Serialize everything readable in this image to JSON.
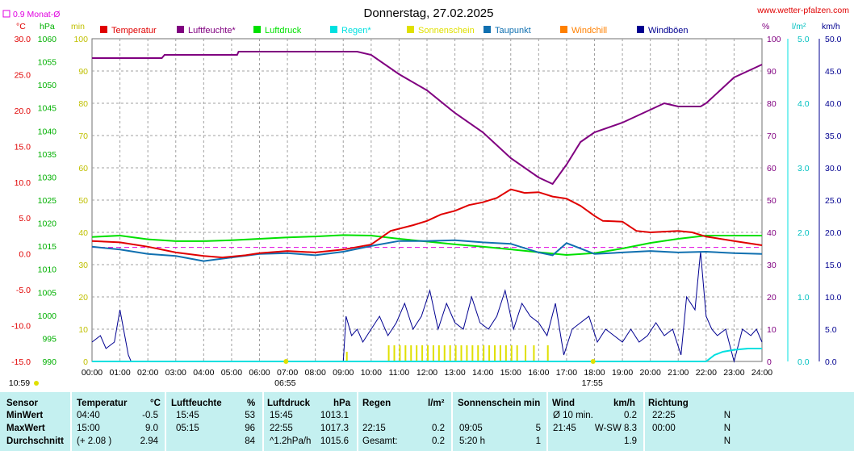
{
  "title": "Donnerstag, 27.02.2025",
  "site": "www.wetter-pfalzen.com",
  "avg_legend_label": "0.9 Monat-Ø",
  "unit_labels": {
    "temp": "°C",
    "press": "hPa",
    "sun": "min",
    "hum": "%",
    "rain": "l/m²",
    "wind": "km/h"
  },
  "legend": [
    {
      "label": "Temperatur",
      "color": "#e00000"
    },
    {
      "label": "Luftfeuchte*",
      "color": "#800080"
    },
    {
      "label": "Luftdruck",
      "color": "#00e000"
    },
    {
      "label": "Regen*",
      "color": "#00e0e0"
    },
    {
      "label": "Sonnenschein",
      "color": "#e0e000"
    },
    {
      "label": "Taupunkt",
      "color": "#1070b0"
    },
    {
      "label": "Windchill",
      "color": "#ff8000"
    },
    {
      "label": "Windböen",
      "color": "#000090"
    }
  ],
  "colors": {
    "temp": "#e00000",
    "hum": "#800080",
    "press": "#00e000",
    "rain": "#00e0e0",
    "sun": "#e0e000",
    "dew": "#1070b0",
    "gust": "#000090",
    "avg": "#e000e0",
    "grid": "#a0a0a0"
  },
  "axes": {
    "temp": {
      "ticks": [
        "30.0",
        "25.0",
        "20.0",
        "15.0",
        "10.0",
        "5.0",
        "0.0",
        "-5.0",
        "-10.0",
        "-15.0"
      ],
      "range": [
        -15,
        30
      ]
    },
    "press": {
      "ticks": [
        "1060",
        "1055",
        "1050",
        "1045",
        "1040",
        "1035",
        "1030",
        "1025",
        "1020",
        "1015",
        "1010",
        "1005",
        "1000",
        "995",
        "990"
      ],
      "range": [
        990,
        1060
      ]
    },
    "sun": {
      "ticks": [
        "100",
        "90",
        "80",
        "70",
        "60",
        "50",
        "40",
        "30",
        "20",
        "10",
        "0"
      ],
      "range": [
        0,
        100
      ]
    },
    "hum": {
      "ticks": [
        "100",
        "90",
        "80",
        "70",
        "60",
        "50",
        "40",
        "30",
        "20",
        "10",
        "0"
      ],
      "range": [
        0,
        100
      ]
    },
    "rain": {
      "ticks": [
        "5.0",
        "4.0",
        "3.0",
        "2.0",
        "1.0",
        "0.0"
      ],
      "range": [
        0,
        5
      ]
    },
    "wind": {
      "ticks": [
        "50.0",
        "45.0",
        "40.0",
        "35.0",
        "30.0",
        "25.0",
        "20.0",
        "15.0",
        "10.0",
        "5.0",
        "0.0"
      ],
      "range": [
        0,
        50
      ]
    },
    "x": {
      "ticks": [
        "00:00",
        "01:00",
        "02:00",
        "03:00",
        "04:00",
        "05:00",
        "06:00",
        "07:00",
        "08:00",
        "09:00",
        "10:00",
        "11:00",
        "12:00",
        "13:00",
        "14:00",
        "15:00",
        "16:00",
        "17:00",
        "18:00",
        "19:00",
        "20:00",
        "21:00",
        "22:00",
        "23:00",
        "24:00"
      ],
      "range": [
        0,
        24
      ]
    }
  },
  "sun_events": [
    {
      "label": "10:59",
      "hour": -1
    },
    {
      "label": "06:55",
      "hour": 6.92
    },
    {
      "label": "17:55",
      "hour": 17.92
    }
  ],
  "chart_data": {
    "type": "line",
    "x_unit": "hour of day",
    "month_avg_temp": 0.9,
    "series": [
      {
        "name": "Temperatur",
        "axis": "temp",
        "points": [
          [
            0,
            1.8
          ],
          [
            1,
            1.6
          ],
          [
            2,
            1.0
          ],
          [
            3,
            0.2
          ],
          [
            4,
            -0.3
          ],
          [
            4.67,
            -0.5
          ],
          [
            5.5,
            -0.2
          ],
          [
            6,
            0.1
          ],
          [
            7,
            0.4
          ],
          [
            8,
            0.2
          ],
          [
            9,
            0.6
          ],
          [
            10,
            1.3
          ],
          [
            10.7,
            3.2
          ],
          [
            11.5,
            4.0
          ],
          [
            12,
            4.6
          ],
          [
            12.5,
            5.5
          ],
          [
            13,
            6.0
          ],
          [
            13.5,
            6.8
          ],
          [
            14,
            7.2
          ],
          [
            14.5,
            7.8
          ],
          [
            15,
            9.0
          ],
          [
            15.5,
            8.5
          ],
          [
            16,
            8.6
          ],
          [
            16.5,
            8.0
          ],
          [
            17,
            7.7
          ],
          [
            17.5,
            6.7
          ],
          [
            18,
            5.3
          ],
          [
            18.3,
            4.6
          ],
          [
            19,
            4.5
          ],
          [
            19.5,
            3.2
          ],
          [
            20,
            3.0
          ],
          [
            21,
            3.2
          ],
          [
            21.5,
            3.0
          ],
          [
            22,
            2.4
          ],
          [
            23,
            1.8
          ],
          [
            24,
            1.2
          ]
        ]
      },
      {
        "name": "Luftfeuchte*",
        "axis": "hum",
        "points": [
          [
            0,
            94
          ],
          [
            2.5,
            94
          ],
          [
            2.6,
            95
          ],
          [
            5.2,
            95
          ],
          [
            5.25,
            96
          ],
          [
            9.5,
            96
          ],
          [
            10,
            95
          ],
          [
            11,
            89
          ],
          [
            12,
            84
          ],
          [
            13,
            77
          ],
          [
            14,
            71
          ],
          [
            15,
            63
          ],
          [
            16,
            57
          ],
          [
            16.5,
            55
          ],
          [
            17,
            61
          ],
          [
            17.5,
            68
          ],
          [
            18,
            71
          ],
          [
            19,
            74
          ],
          [
            20,
            78
          ],
          [
            20.5,
            80
          ],
          [
            21,
            79
          ],
          [
            21.8,
            79
          ],
          [
            22,
            80
          ],
          [
            23,
            88
          ],
          [
            23.5,
            90
          ],
          [
            24,
            92
          ]
        ]
      },
      {
        "name": "Luftdruck",
        "axis": "press",
        "points": [
          [
            0,
            1017.0
          ],
          [
            1,
            1017.3
          ],
          [
            2,
            1016.5
          ],
          [
            3,
            1016.1
          ],
          [
            4,
            1016.1
          ],
          [
            5,
            1016.3
          ],
          [
            6,
            1016.6
          ],
          [
            7,
            1016.9
          ],
          [
            8,
            1017.1
          ],
          [
            9,
            1017.4
          ],
          [
            10,
            1017.3
          ],
          [
            11,
            1016.6
          ],
          [
            12,
            1016.0
          ],
          [
            13,
            1015.4
          ],
          [
            14,
            1014.9
          ],
          [
            15,
            1014.3
          ],
          [
            16,
            1013.7
          ],
          [
            17,
            1013.1
          ],
          [
            18,
            1013.5
          ],
          [
            19,
            1014.5
          ],
          [
            20,
            1015.7
          ],
          [
            21,
            1016.6
          ],
          [
            22,
            1017.3
          ],
          [
            23,
            1017.3
          ],
          [
            24,
            1017.3
          ]
        ]
      },
      {
        "name": "Taupunkt",
        "axis": "temp",
        "points": [
          [
            0,
            1.0
          ],
          [
            1,
            0.6
          ],
          [
            2,
            0.0
          ],
          [
            3,
            -0.3
          ],
          [
            4,
            -1.0
          ],
          [
            5,
            -0.5
          ],
          [
            6,
            0.0
          ],
          [
            7,
            0.1
          ],
          [
            8,
            -0.2
          ],
          [
            9,
            0.3
          ],
          [
            10,
            1.1
          ],
          [
            11,
            1.8
          ],
          [
            12,
            1.8
          ],
          [
            13,
            1.9
          ],
          [
            14,
            1.6
          ],
          [
            15,
            1.4
          ],
          [
            16,
            0.2
          ],
          [
            16.5,
            -0.2
          ],
          [
            17,
            1.5
          ],
          [
            18,
            0.0
          ],
          [
            19,
            0.2
          ],
          [
            20,
            0.4
          ],
          [
            21,
            0.2
          ],
          [
            22,
            0.3
          ],
          [
            23,
            0.1
          ],
          [
            24,
            0.0
          ]
        ]
      },
      {
        "name": "Windböen",
        "axis": "wind",
        "points": [
          [
            0,
            3
          ],
          [
            0.3,
            4
          ],
          [
            0.5,
            2
          ],
          [
            0.8,
            3
          ],
          [
            1.0,
            8
          ],
          [
            1.3,
            1
          ],
          [
            1.4,
            0
          ],
          [
            9.0,
            0
          ],
          [
            9.1,
            7
          ],
          [
            9.3,
            4
          ],
          [
            9.5,
            5
          ],
          [
            9.7,
            3
          ],
          [
            10,
            5
          ],
          [
            10.3,
            7
          ],
          [
            10.6,
            4
          ],
          [
            10.9,
            6
          ],
          [
            11.2,
            9
          ],
          [
            11.5,
            5
          ],
          [
            11.8,
            7
          ],
          [
            12.1,
            11
          ],
          [
            12.4,
            5
          ],
          [
            12.7,
            9
          ],
          [
            13.0,
            6
          ],
          [
            13.3,
            5
          ],
          [
            13.6,
            10
          ],
          [
            13.9,
            6
          ],
          [
            14.2,
            5
          ],
          [
            14.5,
            7
          ],
          [
            14.8,
            11
          ],
          [
            15.1,
            5
          ],
          [
            15.4,
            9
          ],
          [
            15.7,
            7
          ],
          [
            16.0,
            6
          ],
          [
            16.3,
            4
          ],
          [
            16.6,
            9
          ],
          [
            16.9,
            1
          ],
          [
            17.2,
            5
          ],
          [
            17.5,
            6
          ],
          [
            17.8,
            7
          ],
          [
            18.1,
            3
          ],
          [
            18.4,
            5
          ],
          [
            18.7,
            4
          ],
          [
            19.0,
            3
          ],
          [
            19.3,
            5
          ],
          [
            19.6,
            3
          ],
          [
            19.9,
            4
          ],
          [
            20.2,
            6
          ],
          [
            20.5,
            4
          ],
          [
            20.8,
            5
          ],
          [
            21.1,
            1
          ],
          [
            21.3,
            10
          ],
          [
            21.6,
            8
          ],
          [
            21.8,
            17
          ],
          [
            22.0,
            7
          ],
          [
            22.2,
            5
          ],
          [
            22.4,
            4
          ],
          [
            22.7,
            5
          ],
          [
            23.0,
            0
          ],
          [
            23.3,
            5
          ],
          [
            23.6,
            4
          ],
          [
            23.8,
            5
          ],
          [
            24,
            3
          ]
        ]
      },
      {
        "name": "Regen*",
        "axis": "rain",
        "points": [
          [
            0,
            0
          ],
          [
            22.0,
            0
          ],
          [
            22.3,
            0.1
          ],
          [
            22.6,
            0.15
          ],
          [
            23,
            0.18
          ],
          [
            23.5,
            0.2
          ],
          [
            24,
            0.2
          ]
        ]
      }
    ],
    "sunshine": {
      "axis": "sun",
      "bars": [
        [
          9.1,
          3
        ],
        [
          10.6,
          5
        ],
        [
          10.8,
          5
        ],
        [
          11,
          5
        ],
        [
          11.2,
          5
        ],
        [
          11.4,
          5
        ],
        [
          11.6,
          5
        ],
        [
          11.8,
          5
        ],
        [
          12,
          5
        ],
        [
          12.2,
          5
        ],
        [
          12.4,
          5
        ],
        [
          12.6,
          5
        ],
        [
          12.8,
          5
        ],
        [
          13,
          5
        ],
        [
          13.2,
          5
        ],
        [
          13.4,
          5
        ],
        [
          13.6,
          5
        ],
        [
          13.8,
          5
        ],
        [
          14,
          5
        ],
        [
          14.2,
          5
        ],
        [
          14.4,
          5
        ],
        [
          14.6,
          5
        ],
        [
          14.8,
          5
        ],
        [
          15,
          5
        ],
        [
          15.2,
          5
        ],
        [
          15.5,
          5
        ],
        [
          15.8,
          5
        ],
        [
          16.3,
          5
        ]
      ]
    }
  },
  "stats": {
    "headers": {
      "sensor": "Sensor",
      "temp": "Temperatur",
      "temp_unit": "°C",
      "hum": "Luftfeuchte",
      "hum_unit": "%",
      "press": "Luftdruck",
      "press_unit": "hPa",
      "rain": "Regen",
      "rain_unit": "l/m²",
      "sun": "Sonnenschein min",
      "wind": "Wind",
      "wind_unit": "km/h",
      "dir": "Richtung"
    },
    "rows": [
      {
        "label": "MinWert",
        "temp_time": "04:40",
        "temp_val": "-0.5",
        "hum_time": "15:45",
        "hum_val": "53",
        "press_time": "15:45",
        "press_val": "1013.1",
        "rain_time": "",
        "rain_val": "",
        "sun_time": "",
        "sun_val": "",
        "wind_time": "Ø 10 min.",
        "wind_val": "0.2",
        "dir_time": "22:25",
        "dir_val": "N"
      },
      {
        "label": "MaxWert",
        "temp_time": "15:00",
        "temp_val": "9.0",
        "hum_time": "05:15",
        "hum_val": "96",
        "press_time": "22:55",
        "press_val": "1017.3",
        "rain_time": "22:15",
        "rain_val": "0.2",
        "sun_time": "09:05",
        "sun_val": "5",
        "wind_time": "21:45",
        "wind_val": "W-SW 8.3",
        "dir_time": "00:00",
        "dir_val": "N"
      },
      {
        "label": "Durchschnitt",
        "temp_time": "(+ 2.08 )",
        "temp_val": "2.94",
        "hum_time": "",
        "hum_val": "84",
        "press_time": "^1.2hPa/h",
        "press_val": "1015.6",
        "rain_time": "Gesamt:",
        "rain_val": "0.2",
        "sun_time": "5:20 h",
        "sun_val": "1",
        "wind_time": "",
        "wind_val": "1.9",
        "dir_time": "",
        "dir_val": "N"
      }
    ]
  }
}
